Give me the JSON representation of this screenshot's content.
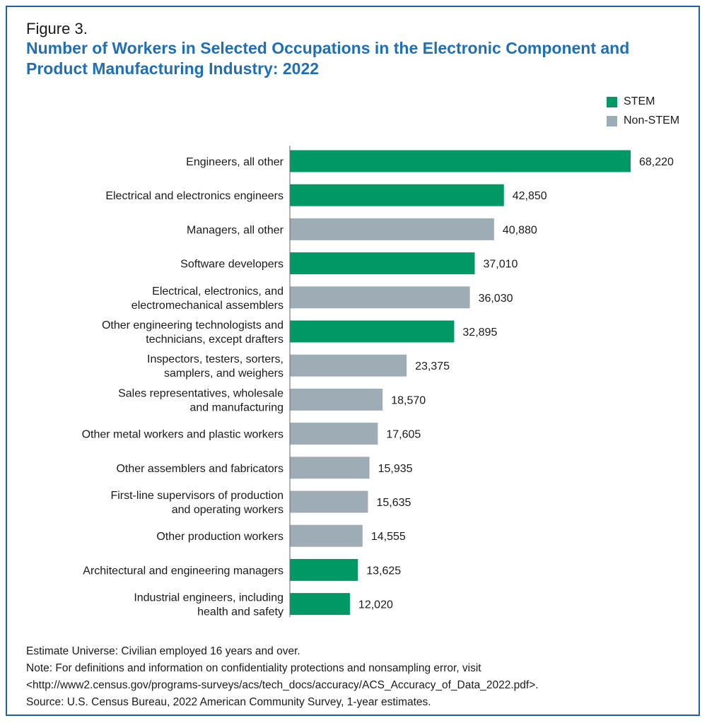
{
  "figure_label": "Figure 3.",
  "title": "Number of Workers in Selected Occupations in the Electronic Component and Product Manufacturing Industry: 2022",
  "legend": [
    {
      "label": "STEM",
      "color": "#009966"
    },
    {
      "label": "Non-STEM",
      "color": "#9eacb5"
    }
  ],
  "chart_data": {
    "type": "bar",
    "orientation": "horizontal",
    "title": "Number of Workers in Selected Occupations in the Electronic Component and Product Manufacturing Industry: 2022",
    "xlabel": "",
    "ylabel": "",
    "xlim": [
      0,
      70000
    ],
    "grid": false,
    "legend_position": "top-right",
    "categories": [
      "Engineers, all other",
      "Electrical and electronics engineers",
      "Managers, all other",
      "Software developers",
      "Electrical, electronics, and electromechanical assemblers",
      "Other engineering technologists and technicians, except drafters",
      "Inspectors, testers, sorters, samplers, and weighers",
      "Sales representatives, wholesale and manufacturing",
      "Other metal workers and plastic workers",
      "Other assemblers and fabricators",
      "First-line supervisors of production and operating workers",
      "Other production workers",
      "Architectural and engineering managers",
      "Industrial engineers, including health and safety"
    ],
    "category_lines": [
      [
        "Engineers, all other"
      ],
      [
        "Electrical and electronics engineers"
      ],
      [
        "Managers, all other"
      ],
      [
        "Software developers"
      ],
      [
        "Electrical, electronics, and",
        "electromechanical assemblers"
      ],
      [
        "Other engineering technologists and",
        "technicians, except drafters"
      ],
      [
        "Inspectors, testers, sorters,",
        "samplers, and weighers"
      ],
      [
        "Sales representatives, wholesale",
        "and manufacturing"
      ],
      [
        "Other metal workers and plastic workers"
      ],
      [
        "Other assemblers and fabricators"
      ],
      [
        "First-line supervisors of production",
        "and operating workers"
      ],
      [
        "Other production workers"
      ],
      [
        "Architectural and engineering managers"
      ],
      [
        "Industrial engineers, including",
        "health and safety"
      ]
    ],
    "values": [
      68220,
      42850,
      40880,
      37010,
      36030,
      32895,
      23375,
      18570,
      17605,
      15935,
      15635,
      14555,
      13625,
      12020
    ],
    "value_labels": [
      "68,220",
      "42,850",
      "40,880",
      "37,010",
      "36,030",
      "32,895",
      "23,375",
      "18,570",
      "17,605",
      "15,935",
      "15,635",
      "14,555",
      "13,625",
      "12,020"
    ],
    "groups": [
      "STEM",
      "STEM",
      "Non-STEM",
      "STEM",
      "Non-STEM",
      "STEM",
      "Non-STEM",
      "Non-STEM",
      "Non-STEM",
      "Non-STEM",
      "Non-STEM",
      "Non-STEM",
      "STEM",
      "STEM"
    ]
  },
  "notes": {
    "universe": "Estimate Universe: Civilian employed 16 years and over.",
    "note_line1": "Note: For definitions and information on confidentiality protections and nonsampling error, visit",
    "note_line2": "<http://www2.census.gov/programs-surveys/acs/tech_docs/accuracy/ACS_Accuracy_of_Data_2022.pdf>.",
    "source": "Source: U.S. Census Bureau, 2022 American Community Survey, 1-year estimates."
  }
}
